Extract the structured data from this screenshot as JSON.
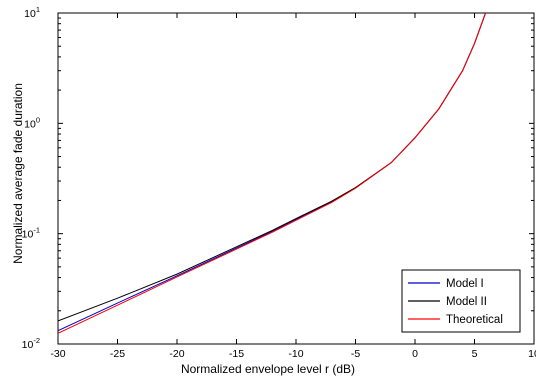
{
  "chart_data": {
    "type": "line",
    "xlabel": "Normalized envelope level r (dB)",
    "ylabel": "Normalized average fade duration",
    "xlim": [
      -30,
      10
    ],
    "ylim": [
      0.01,
      10
    ],
    "yscale": "log",
    "grid": false,
    "legend_position": "bottom-right",
    "x_ticks": [
      "-30",
      "-25",
      "-20",
      "-15",
      "-10",
      "-5",
      "0",
      "5",
      "10"
    ],
    "y_ticks": [
      {
        "base": "10",
        "exp": "-2",
        "value": 0.01
      },
      {
        "base": "10",
        "exp": "-1",
        "value": 0.1
      },
      {
        "base": "10",
        "exp": "0",
        "value": 1
      },
      {
        "base": "10",
        "exp": "1",
        "value": 10
      }
    ],
    "series": [
      {
        "name": "Model I",
        "color": "#0000cc",
        "x": [
          -30,
          -25,
          -20,
          -15,
          -12,
          -10,
          -7,
          -5,
          -2,
          0,
          2,
          4,
          5,
          6
        ],
        "y": [
          0.0132,
          0.0235,
          0.0415,
          0.074,
          0.105,
          0.135,
          0.195,
          0.26,
          0.44,
          0.74,
          1.35,
          3.0,
          5.3,
          10.5
        ]
      },
      {
        "name": "Model II",
        "color": "#000000",
        "x": [
          -30,
          -25,
          -20,
          -15,
          -12,
          -10,
          -7,
          -5,
          -2,
          0,
          2,
          4,
          5,
          6
        ],
        "y": [
          0.0162,
          0.026,
          0.043,
          0.076,
          0.107,
          0.137,
          0.197,
          0.262,
          0.44,
          0.74,
          1.35,
          3.0,
          5.3,
          10.5
        ]
      },
      {
        "name": "Theoretical",
        "color": "#ff0000",
        "x": [
          -30,
          -25,
          -20,
          -15,
          -12,
          -10,
          -7,
          -5,
          -2,
          0,
          2,
          4,
          5,
          6
        ],
        "y": [
          0.0125,
          0.0225,
          0.0405,
          0.0725,
          0.103,
          0.132,
          0.192,
          0.258,
          0.44,
          0.74,
          1.35,
          3.0,
          5.3,
          10.5
        ]
      }
    ]
  }
}
